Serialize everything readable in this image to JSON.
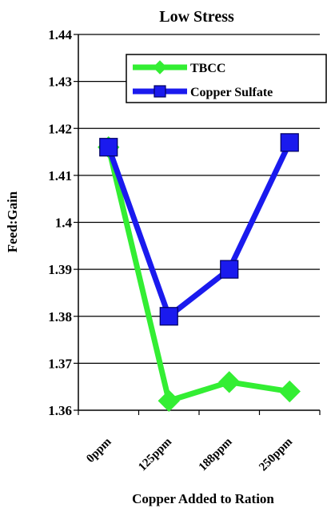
{
  "chart_data": {
    "type": "line",
    "title": "Low Stress",
    "xlabel": "Copper Added to Ration",
    "ylabel": "Feed:Gain",
    "categories": [
      "0ppm",
      "125ppm",
      "188ppm",
      "250ppm"
    ],
    "ylim": [
      1.36,
      1.44
    ],
    "yticks": [
      "1.36",
      "1.37",
      "1.38",
      "1.39",
      "1.4",
      "1.41",
      "1.42",
      "1.43",
      "1.44"
    ],
    "grid": true,
    "legend_position": "top-right",
    "series": [
      {
        "name": "TBCC",
        "color": "#33ee33",
        "marker": "diamond",
        "values": [
          1.416,
          1.362,
          1.366,
          1.364
        ]
      },
      {
        "name": "Copper Sulfate",
        "color": "#1a1aee",
        "marker": "square",
        "values": [
          1.416,
          1.38,
          1.39,
          1.417
        ]
      }
    ]
  }
}
